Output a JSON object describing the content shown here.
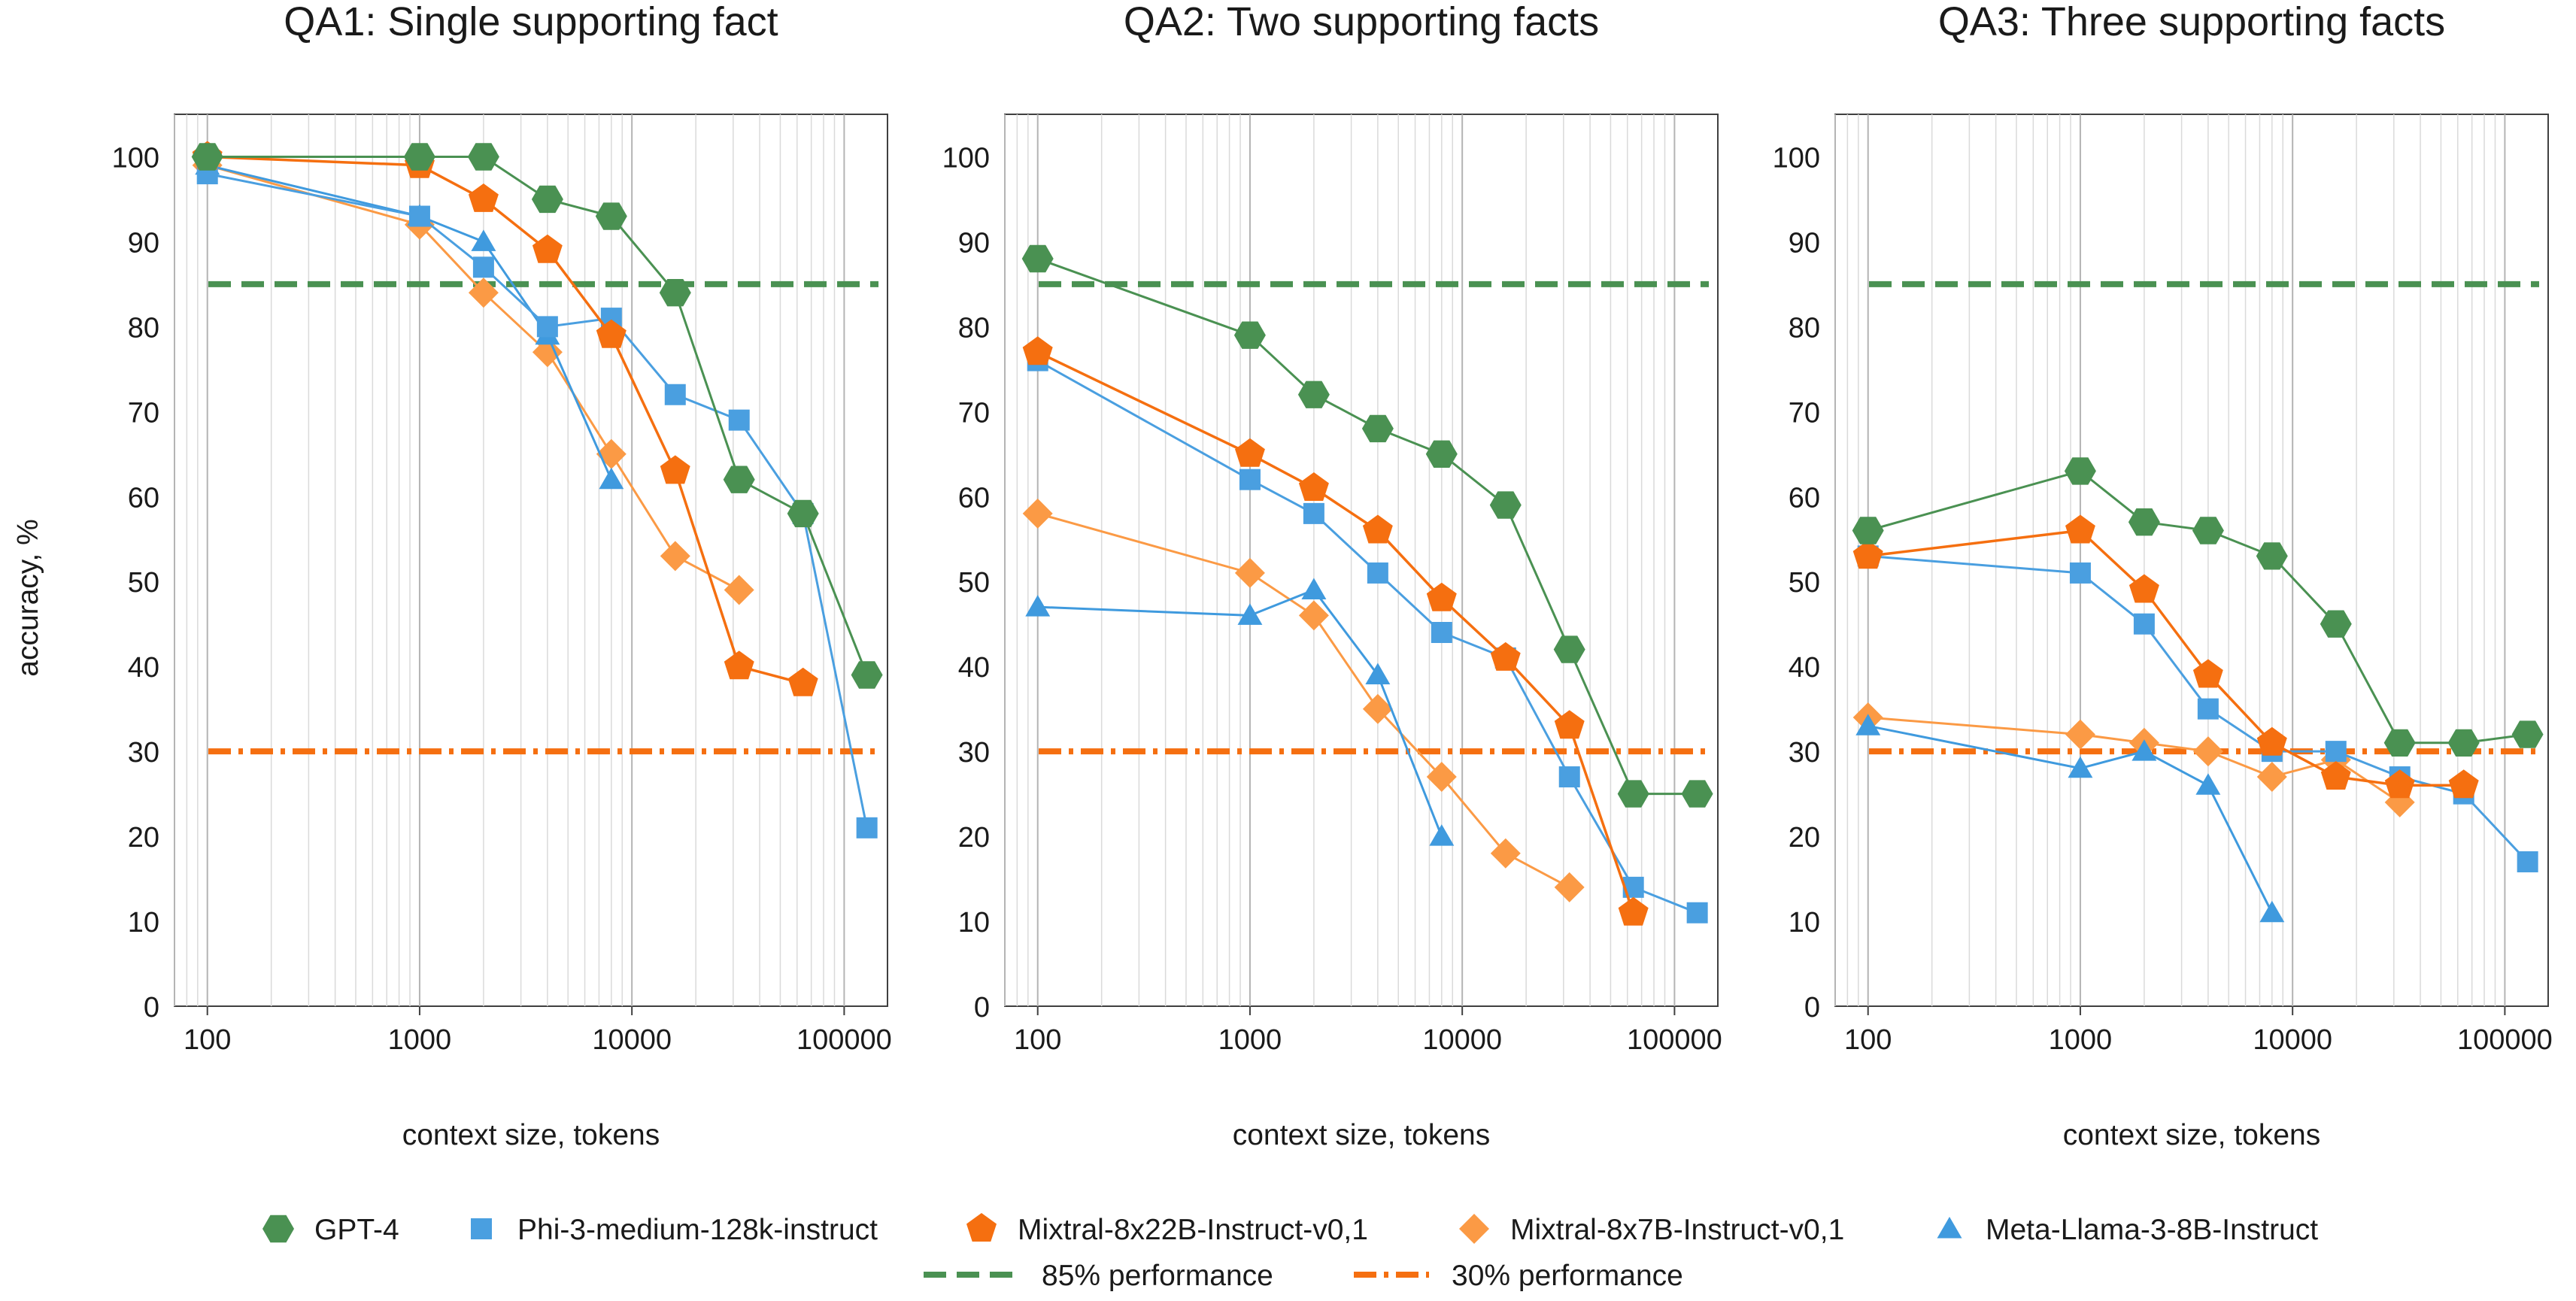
{
  "colors": {
    "GPT-4": "#4a9152",
    "Phi-3-medium-128k-instruct": "#4a9fe0",
    "Mixtral-8x22B-Instruct-v0,1": "#f56f10",
    "Mixtral-8x7B-Instruct-v0,1": "#fb9a45",
    "Meta-Llama-3-8B-Instruct": "#3f9ade",
    "ref85": "#4a9152",
    "ref30": "#f56f10",
    "grid": "#c8c8c8",
    "axis": "#404040"
  },
  "legend": {
    "models": [
      {
        "name": "GPT-4",
        "marker": "hexagon"
      },
      {
        "name": "Phi-3-medium-128k-instruct",
        "marker": "square"
      },
      {
        "name": "Mixtral-8x22B-Instruct-v0,1",
        "marker": "pentagon"
      },
      {
        "name": "Mixtral-8x7B-Instruct-v0,1",
        "marker": "diamond"
      },
      {
        "name": "Meta-Llama-3-8B-Instruct",
        "marker": "triangle"
      }
    ],
    "refs": [
      {
        "name": "85% performance",
        "style": "dash"
      },
      {
        "name": "30% performance",
        "style": "dashdot"
      }
    ]
  },
  "chart_data": [
    {
      "type": "line",
      "title": "QA1: Single supporting fact",
      "xlabel": "context size, tokens",
      "ylabel": "accuracy, %",
      "xscale": "log",
      "xlim": [
        70,
        160000
      ],
      "ylim": [
        0,
        105
      ],
      "xticks": [
        100,
        1000,
        10000,
        100000
      ],
      "yticks": [
        0,
        10,
        20,
        30,
        40,
        50,
        60,
        70,
        80,
        90,
        100
      ],
      "grid": true,
      "reference_lines": [
        {
          "name": "85% performance",
          "y": 85
        },
        {
          "name": "30% performance",
          "y": 30
        }
      ],
      "series": [
        {
          "name": "GPT-4",
          "x": [
            100,
            1000,
            2000,
            4000,
            8000,
            16000,
            32000,
            64000,
            128000
          ],
          "y": [
            100,
            100,
            100,
            95,
            93,
            84,
            62,
            58,
            39
          ]
        },
        {
          "name": "Phi-3-medium-128k-instruct",
          "x": [
            100,
            1000,
            2000,
            4000,
            8000,
            16000,
            32000,
            64000,
            128000
          ],
          "y": [
            98,
            93,
            87,
            80,
            81,
            72,
            69,
            58,
            21
          ]
        },
        {
          "name": "Mixtral-8x22B-Instruct-v0,1",
          "x": [
            100,
            1000,
            2000,
            4000,
            8000,
            16000,
            32000,
            64000
          ],
          "y": [
            100,
            99,
            95,
            89,
            79,
            63,
            40,
            38
          ]
        },
        {
          "name": "Mixtral-8x7B-Instruct-v0,1",
          "x": [
            100,
            1000,
            2000,
            4000,
            8000,
            16000,
            32000
          ],
          "y": [
            99,
            92,
            84,
            77,
            65,
            53,
            49
          ]
        },
        {
          "name": "Meta-Llama-3-8B-Instruct",
          "x": [
            100,
            1000,
            2000,
            4000,
            8000
          ],
          "y": [
            99,
            93,
            90,
            79,
            62
          ]
        }
      ]
    },
    {
      "type": "line",
      "title": "QA2: Two supporting facts",
      "xlabel": "context size, tokens",
      "xscale": "log",
      "xlim": [
        70,
        160000
      ],
      "ylim": [
        0,
        105
      ],
      "xticks": [
        100,
        1000,
        10000,
        100000
      ],
      "yticks": [
        0,
        10,
        20,
        30,
        40,
        50,
        60,
        70,
        80,
        90,
        100
      ],
      "grid": true,
      "reference_lines": [
        {
          "name": "85% performance",
          "y": 85
        },
        {
          "name": "30% performance",
          "y": 30
        }
      ],
      "series": [
        {
          "name": "GPT-4",
          "x": [
            100,
            1000,
            2000,
            4000,
            8000,
            16000,
            32000,
            64000,
            128000
          ],
          "y": [
            88,
            79,
            72,
            68,
            65,
            59,
            42,
            25,
            25
          ]
        },
        {
          "name": "Phi-3-medium-128k-instruct",
          "x": [
            100,
            1000,
            2000,
            4000,
            8000,
            16000,
            32000,
            64000,
            128000
          ],
          "y": [
            76,
            62,
            58,
            51,
            44,
            41,
            27,
            14,
            11
          ]
        },
        {
          "name": "Mixtral-8x22B-Instruct-v0,1",
          "x": [
            100,
            1000,
            2000,
            4000,
            8000,
            16000,
            32000,
            64000
          ],
          "y": [
            77,
            65,
            61,
            56,
            48,
            41,
            33,
            11
          ]
        },
        {
          "name": "Mixtral-8x7B-Instruct-v0,1",
          "x": [
            100,
            1000,
            2000,
            4000,
            8000,
            16000,
            32000
          ],
          "y": [
            58,
            51,
            46,
            35,
            27,
            18,
            14
          ]
        },
        {
          "name": "Meta-Llama-3-8B-Instruct",
          "x": [
            100,
            1000,
            2000,
            4000,
            8000
          ],
          "y": [
            47,
            46,
            49,
            39,
            20
          ]
        }
      ]
    },
    {
      "type": "line",
      "title": "QA3: Three supporting facts",
      "xlabel": "context size, tokens",
      "xscale": "log",
      "xlim": [
        70,
        160000
      ],
      "ylim": [
        0,
        105
      ],
      "xticks": [
        100,
        1000,
        10000,
        100000
      ],
      "yticks": [
        0,
        10,
        20,
        30,
        40,
        50,
        60,
        70,
        80,
        90,
        100
      ],
      "grid": true,
      "reference_lines": [
        {
          "name": "85% performance",
          "y": 85
        },
        {
          "name": "30% performance",
          "y": 30
        }
      ],
      "series": [
        {
          "name": "GPT-4",
          "x": [
            100,
            1000,
            2000,
            4000,
            8000,
            16000,
            32000,
            64000,
            128000
          ],
          "y": [
            56,
            63,
            57,
            56,
            53,
            45,
            31,
            31,
            32
          ]
        },
        {
          "name": "Phi-3-medium-128k-instruct",
          "x": [
            100,
            1000,
            2000,
            4000,
            8000,
            16000,
            32000,
            64000,
            128000
          ],
          "y": [
            53,
            51,
            45,
            35,
            30,
            30,
            27,
            25,
            17
          ]
        },
        {
          "name": "Mixtral-8x22B-Instruct-v0,1",
          "x": [
            100,
            1000,
            2000,
            4000,
            8000,
            16000,
            32000,
            64000
          ],
          "y": [
            53,
            56,
            49,
            39,
            31,
            27,
            26,
            26
          ]
        },
        {
          "name": "Mixtral-8x7B-Instruct-v0,1",
          "x": [
            100,
            1000,
            2000,
            4000,
            8000,
            16000,
            32000
          ],
          "y": [
            34,
            32,
            31,
            30,
            27,
            29,
            24
          ]
        },
        {
          "name": "Meta-Llama-3-8B-Instruct",
          "x": [
            100,
            1000,
            2000,
            4000,
            8000
          ],
          "y": [
            33,
            28,
            30,
            26,
            11
          ]
        }
      ]
    }
  ]
}
